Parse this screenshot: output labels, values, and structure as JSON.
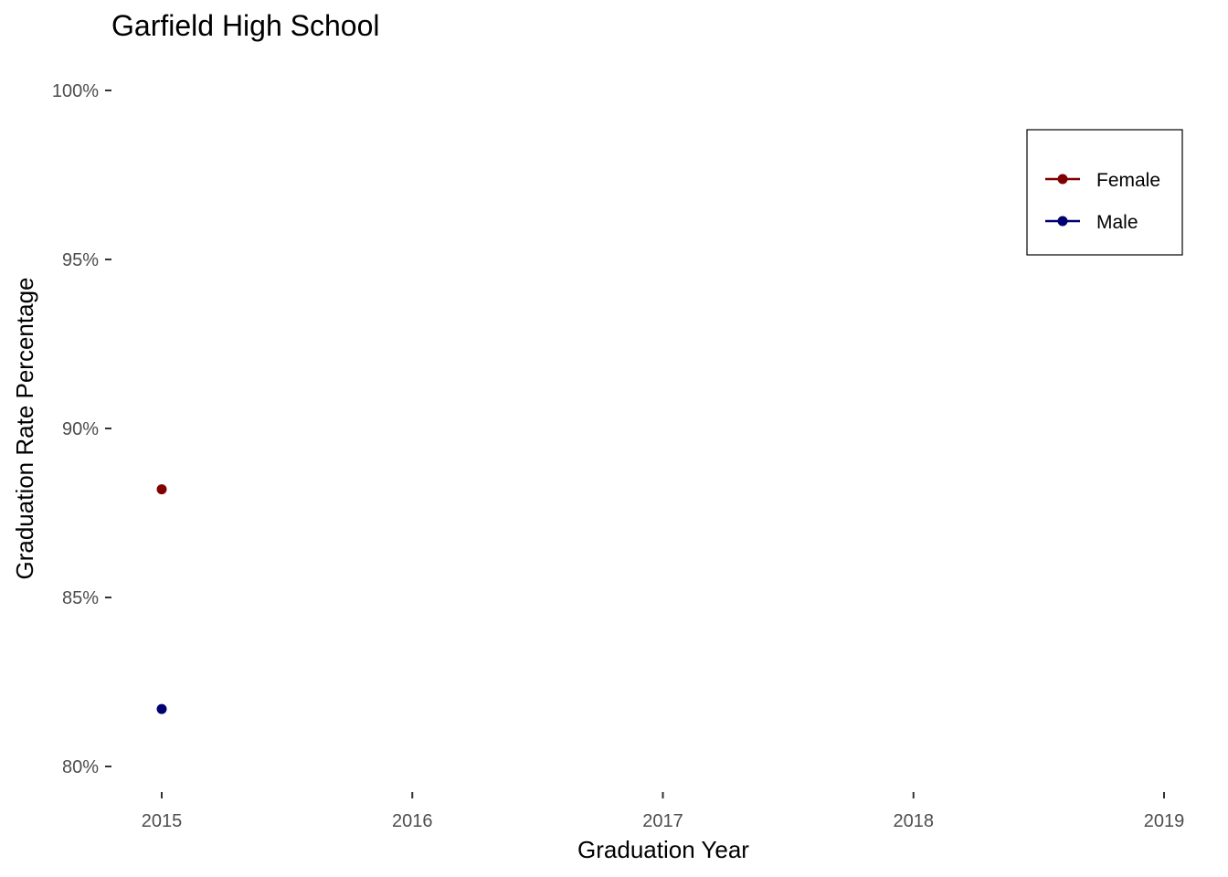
{
  "chart_data": {
    "type": "line",
    "title": "Garfield High School",
    "xlabel": "Graduation Year",
    "ylabel": "Graduation Rate Percentage",
    "x_ticks": [
      "2015",
      "2016",
      "2017",
      "2018",
      "2019"
    ],
    "xlim": [
      2015,
      2019
    ],
    "y_ticks": [
      "80%",
      "85%",
      "90%",
      "95%",
      "100%"
    ],
    "ylim": [
      80,
      100
    ],
    "grid": false,
    "legend_position": "top-right",
    "series": [
      {
        "name": "Female",
        "color": "#800000",
        "x": [
          2015
        ],
        "y": [
          88.2
        ]
      },
      {
        "name": "Male",
        "color": "#000070",
        "x": [
          2015
        ],
        "y": [
          81.7
        ]
      }
    ]
  }
}
